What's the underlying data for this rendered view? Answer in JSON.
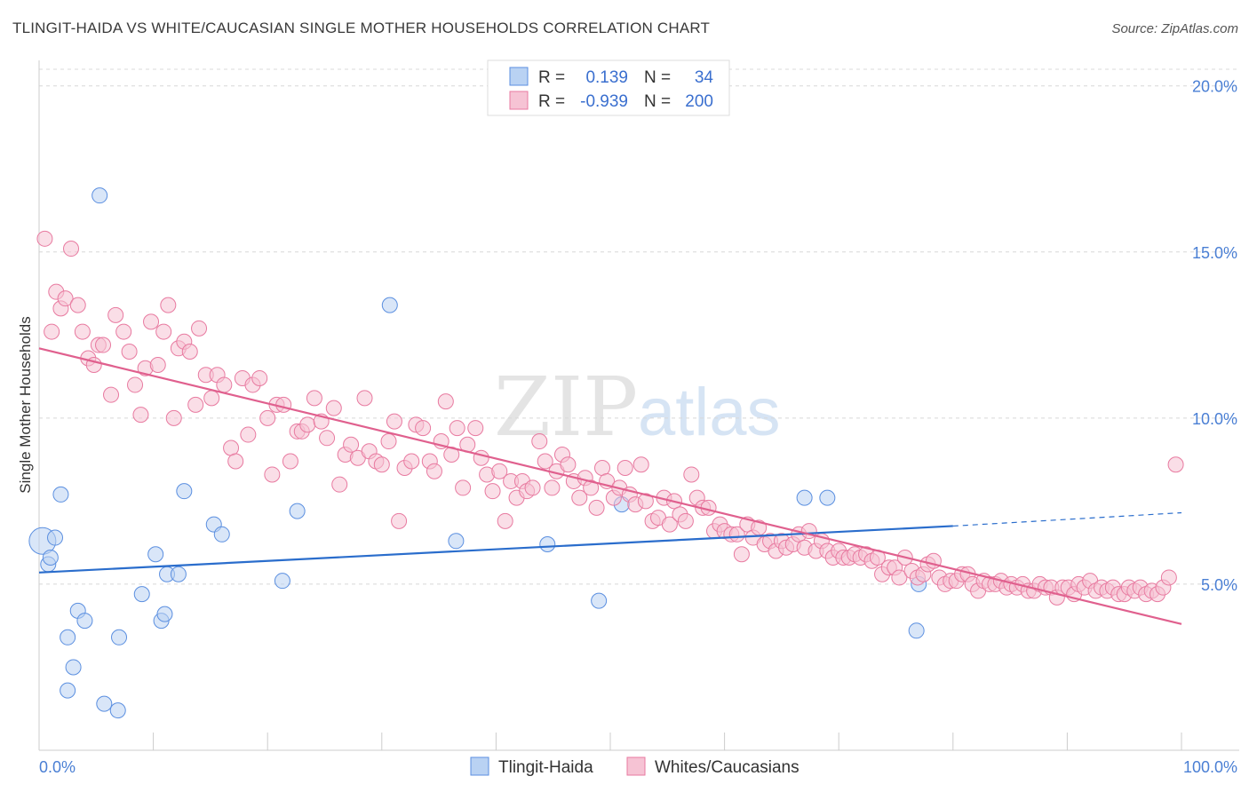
{
  "title": "TLINGIT-HAIDA VS WHITE/CAUCASIAN SINGLE MOTHER HOUSEHOLDS CORRELATION CHART",
  "source": "Source: ZipAtlas.com",
  "watermark": {
    "zip": "ZIP",
    "atlas": "atlas"
  },
  "colors": {
    "blue": "#5b8fe0",
    "blue_fill": "#b9d2f3",
    "blue_line": "#2a6dcc",
    "pink": "#e87aa0",
    "pink_fill": "#f6c3d4",
    "pink_line": "#e0608e",
    "grid": "#d8d8d8",
    "tick_text": "#4a7fd4"
  },
  "legend": {
    "r_label": "R =",
    "n_label": "N =",
    "rows": [
      {
        "r": "0.139",
        "n": "34",
        "color": "blue"
      },
      {
        "r": "-0.939",
        "n": "200",
        "color": "pink"
      }
    ]
  },
  "chart_data": {
    "type": "scatter",
    "title": "TLINGIT-HAIDA VS WHITE/CAUCASIAN SINGLE MOTHER HOUSEHOLDS CORRELATION CHART",
    "xlabel": "",
    "ylabel": "Single Mother Households",
    "xlim": [
      0,
      100
    ],
    "ylim": [
      0,
      20.5
    ],
    "x_tick_labels": [
      "0.0%",
      "100.0%"
    ],
    "y_ticks": [
      5,
      10,
      15,
      20
    ],
    "y_tick_labels": [
      "5.0%",
      "10.0%",
      "15.0%",
      "20.0%"
    ],
    "grid": true,
    "legend_position": "top-center",
    "series": [
      {
        "name": "Tlingit-Haida",
        "color": "blue",
        "points": [
          [
            0.3,
            6.3
          ],
          [
            0.8,
            5.6
          ],
          [
            1.0,
            5.8
          ],
          [
            1.4,
            6.4
          ],
          [
            1.9,
            7.7
          ],
          [
            2.5,
            1.8
          ],
          [
            2.5,
            3.4
          ],
          [
            3.0,
            2.5
          ],
          [
            3.4,
            4.2
          ],
          [
            4.0,
            3.9
          ],
          [
            5.3,
            16.7
          ],
          [
            5.7,
            1.4
          ],
          [
            6.9,
            1.2
          ],
          [
            7.0,
            3.4
          ],
          [
            9.0,
            4.7
          ],
          [
            10.2,
            5.9
          ],
          [
            10.7,
            3.9
          ],
          [
            11.0,
            4.1
          ],
          [
            11.2,
            5.3
          ],
          [
            12.2,
            5.3
          ],
          [
            12.7,
            7.8
          ],
          [
            15.3,
            6.8
          ],
          [
            16.0,
            6.5
          ],
          [
            21.3,
            5.1
          ],
          [
            22.6,
            7.2
          ],
          [
            30.7,
            13.4
          ],
          [
            36.5,
            6.3
          ],
          [
            44.5,
            6.2
          ],
          [
            49.0,
            4.5
          ],
          [
            51.0,
            7.4
          ],
          [
            67.0,
            7.6
          ],
          [
            69.0,
            7.6
          ],
          [
            76.8,
            3.6
          ],
          [
            77.0,
            5.0
          ]
        ],
        "trend": {
          "x": [
            0,
            80
          ],
          "y": [
            5.35,
            6.75
          ],
          "dashed_to": [
            100,
            7.15
          ]
        }
      },
      {
        "name": "Whites/Caucasians",
        "color": "pink",
        "points": [
          [
            0.5,
            15.4
          ],
          [
            1.1,
            12.6
          ],
          [
            1.5,
            13.8
          ],
          [
            1.9,
            13.3
          ],
          [
            2.3,
            13.6
          ],
          [
            2.8,
            15.1
          ],
          [
            3.4,
            13.4
          ],
          [
            3.8,
            12.6
          ],
          [
            4.3,
            11.8
          ],
          [
            4.8,
            11.6
          ],
          [
            5.2,
            12.2
          ],
          [
            5.6,
            12.2
          ],
          [
            6.3,
            10.7
          ],
          [
            6.7,
            13.1
          ],
          [
            7.4,
            12.6
          ],
          [
            7.9,
            12.0
          ],
          [
            8.4,
            11.0
          ],
          [
            8.9,
            10.1
          ],
          [
            9.3,
            11.5
          ],
          [
            9.8,
            12.9
          ],
          [
            10.4,
            11.6
          ],
          [
            10.9,
            12.6
          ],
          [
            11.3,
            13.4
          ],
          [
            11.8,
            10.0
          ],
          [
            12.2,
            12.1
          ],
          [
            12.7,
            12.3
          ],
          [
            13.2,
            12.0
          ],
          [
            13.7,
            10.4
          ],
          [
            14.0,
            12.7
          ],
          [
            14.6,
            11.3
          ],
          [
            15.1,
            10.6
          ],
          [
            15.6,
            11.3
          ],
          [
            16.2,
            11.0
          ],
          [
            16.8,
            9.1
          ],
          [
            17.2,
            8.7
          ],
          [
            17.8,
            11.2
          ],
          [
            18.3,
            9.5
          ],
          [
            18.7,
            11.0
          ],
          [
            19.3,
            11.2
          ],
          [
            20.0,
            10.0
          ],
          [
            20.4,
            8.3
          ],
          [
            20.8,
            10.4
          ],
          [
            21.4,
            10.4
          ],
          [
            22.0,
            8.7
          ],
          [
            22.6,
            9.6
          ],
          [
            23.0,
            9.6
          ],
          [
            23.5,
            9.8
          ],
          [
            24.1,
            10.6
          ],
          [
            24.7,
            9.9
          ],
          [
            25.2,
            9.4
          ],
          [
            25.8,
            10.3
          ],
          [
            26.3,
            8.0
          ],
          [
            26.8,
            8.9
          ],
          [
            27.3,
            9.2
          ],
          [
            27.9,
            8.8
          ],
          [
            28.5,
            10.6
          ],
          [
            28.9,
            9.0
          ],
          [
            29.5,
            8.7
          ],
          [
            30.0,
            8.6
          ],
          [
            30.6,
            9.3
          ],
          [
            31.1,
            9.9
          ],
          [
            31.5,
            6.9
          ],
          [
            32.0,
            8.5
          ],
          [
            32.6,
            8.7
          ],
          [
            33.0,
            9.8
          ],
          [
            33.6,
            9.7
          ],
          [
            34.2,
            8.7
          ],
          [
            34.6,
            8.4
          ],
          [
            35.2,
            9.3
          ],
          [
            35.6,
            10.5
          ],
          [
            36.1,
            8.9
          ],
          [
            36.6,
            9.7
          ],
          [
            37.1,
            7.9
          ],
          [
            37.5,
            9.2
          ],
          [
            38.2,
            9.7
          ],
          [
            38.7,
            8.8
          ],
          [
            39.2,
            8.3
          ],
          [
            39.7,
            7.8
          ],
          [
            40.3,
            8.4
          ],
          [
            40.8,
            6.9
          ],
          [
            41.3,
            8.1
          ],
          [
            41.8,
            7.6
          ],
          [
            42.3,
            8.1
          ],
          [
            42.7,
            7.8
          ],
          [
            43.2,
            7.9
          ],
          [
            43.8,
            9.3
          ],
          [
            44.3,
            8.7
          ],
          [
            44.9,
            7.9
          ],
          [
            45.3,
            8.4
          ],
          [
            45.8,
            8.9
          ],
          [
            46.3,
            8.6
          ],
          [
            46.8,
            8.1
          ],
          [
            47.3,
            7.6
          ],
          [
            47.8,
            8.2
          ],
          [
            48.3,
            7.9
          ],
          [
            48.8,
            7.3
          ],
          [
            49.3,
            8.5
          ],
          [
            49.7,
            8.1
          ],
          [
            50.3,
            7.6
          ],
          [
            50.8,
            7.9
          ],
          [
            51.3,
            8.5
          ],
          [
            51.7,
            7.7
          ],
          [
            52.2,
            7.4
          ],
          [
            52.7,
            8.6
          ],
          [
            53.1,
            7.5
          ],
          [
            53.7,
            6.9
          ],
          [
            54.2,
            7.0
          ],
          [
            54.7,
            7.6
          ],
          [
            55.2,
            6.8
          ],
          [
            55.6,
            7.5
          ],
          [
            56.1,
            7.1
          ],
          [
            56.6,
            6.9
          ],
          [
            57.1,
            8.3
          ],
          [
            57.6,
            7.6
          ],
          [
            58.1,
            7.3
          ],
          [
            58.6,
            7.3
          ],
          [
            59.1,
            6.6
          ],
          [
            59.6,
            6.8
          ],
          [
            60.0,
            6.6
          ],
          [
            60.6,
            6.5
          ],
          [
            61.1,
            6.5
          ],
          [
            61.5,
            5.9
          ],
          [
            62.0,
            6.8
          ],
          [
            62.5,
            6.4
          ],
          [
            63.0,
            6.7
          ],
          [
            63.5,
            6.2
          ],
          [
            64.0,
            6.3
          ],
          [
            64.5,
            6.0
          ],
          [
            65.0,
            6.3
          ],
          [
            65.4,
            6.1
          ],
          [
            66.0,
            6.2
          ],
          [
            66.5,
            6.5
          ],
          [
            67.0,
            6.1
          ],
          [
            67.4,
            6.6
          ],
          [
            68.0,
            6.0
          ],
          [
            68.5,
            6.3
          ],
          [
            69.0,
            6.0
          ],
          [
            69.5,
            5.8
          ],
          [
            70.0,
            6.0
          ],
          [
            70.4,
            5.8
          ],
          [
            70.9,
            5.8
          ],
          [
            71.4,
            5.9
          ],
          [
            71.9,
            5.8
          ],
          [
            72.4,
            5.9
          ],
          [
            72.9,
            5.7
          ],
          [
            73.4,
            5.8
          ],
          [
            73.8,
            5.3
          ],
          [
            74.4,
            5.5
          ],
          [
            74.9,
            5.5
          ],
          [
            75.3,
            5.2
          ],
          [
            75.8,
            5.8
          ],
          [
            76.4,
            5.4
          ],
          [
            76.9,
            5.2
          ],
          [
            77.4,
            5.3
          ],
          [
            77.8,
            5.6
          ],
          [
            78.3,
            5.7
          ],
          [
            78.8,
            5.2
          ],
          [
            79.3,
            5.0
          ],
          [
            79.8,
            5.1
          ],
          [
            80.3,
            5.1
          ],
          [
            80.8,
            5.3
          ],
          [
            81.3,
            5.3
          ],
          [
            81.7,
            5.0
          ],
          [
            82.2,
            4.8
          ],
          [
            82.7,
            5.1
          ],
          [
            83.2,
            5.0
          ],
          [
            83.7,
            5.0
          ],
          [
            84.2,
            5.1
          ],
          [
            84.7,
            4.9
          ],
          [
            85.1,
            5.0
          ],
          [
            85.6,
            4.9
          ],
          [
            86.1,
            5.0
          ],
          [
            86.6,
            4.8
          ],
          [
            87.1,
            4.8
          ],
          [
            87.6,
            5.0
          ],
          [
            88.1,
            4.9
          ],
          [
            88.6,
            4.9
          ],
          [
            89.1,
            4.6
          ],
          [
            89.6,
            4.9
          ],
          [
            90.1,
            4.9
          ],
          [
            90.6,
            4.7
          ],
          [
            91.0,
            5.0
          ],
          [
            91.5,
            4.9
          ],
          [
            92.0,
            5.1
          ],
          [
            92.5,
            4.8
          ],
          [
            93.0,
            4.9
          ],
          [
            93.5,
            4.8
          ],
          [
            94.0,
            4.9
          ],
          [
            94.5,
            4.7
          ],
          [
            95.0,
            4.7
          ],
          [
            95.4,
            4.9
          ],
          [
            95.9,
            4.8
          ],
          [
            96.4,
            4.9
          ],
          [
            96.9,
            4.7
          ],
          [
            97.4,
            4.8
          ],
          [
            97.9,
            4.7
          ],
          [
            98.4,
            4.9
          ],
          [
            98.9,
            5.2
          ],
          [
            99.5,
            8.6
          ]
        ],
        "trend": {
          "x": [
            0,
            100
          ],
          "y": [
            12.1,
            3.8
          ]
        }
      }
    ]
  },
  "bottom_legend": [
    {
      "label": "Tlingit-Haida",
      "color": "blue"
    },
    {
      "label": "Whites/Caucasians",
      "color": "pink"
    }
  ]
}
